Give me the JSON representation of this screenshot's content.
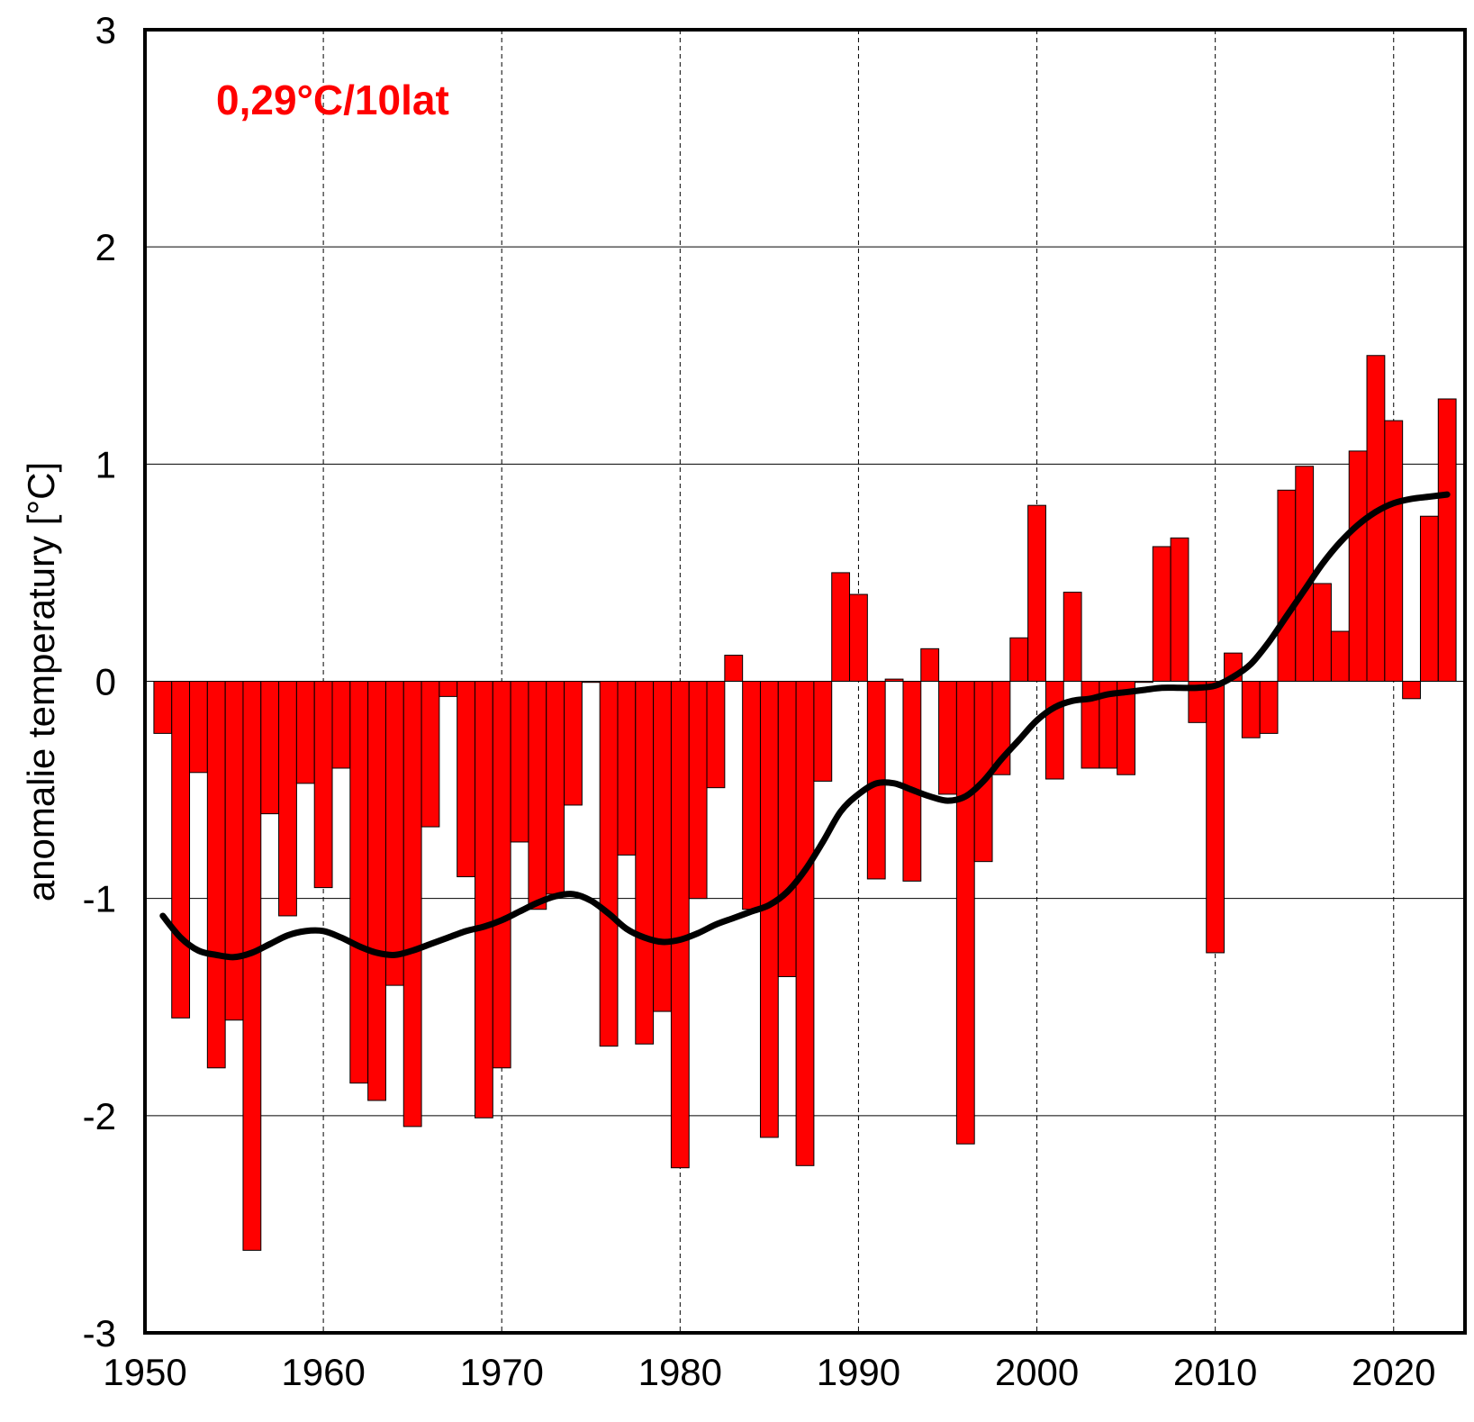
{
  "chart_data": {
    "type": "bar",
    "title": "",
    "xlabel": "",
    "ylabel": "anomalie temperatury [°C]",
    "annotation": "0,29°C/10lat",
    "xlim": [
      1950,
      2024
    ],
    "ylim": [
      -3,
      3
    ],
    "x_ticks": [
      1950,
      1960,
      1970,
      1980,
      1990,
      2000,
      2010,
      2020
    ],
    "y_ticks": [
      -3,
      -2,
      -1,
      0,
      1,
      2,
      3
    ],
    "grid": {
      "x": "dashed",
      "y": "solid"
    },
    "colors": {
      "bars": "#ff0000",
      "bar_edge": "#000000",
      "smooth_line": "#000000",
      "annotation": "#ff0000"
    },
    "series": [
      {
        "type": "bar",
        "x": [
          1951,
          1952,
          1953,
          1954,
          1955,
          1956,
          1957,
          1958,
          1959,
          1960,
          1961,
          1962,
          1963,
          1964,
          1965,
          1966,
          1967,
          1968,
          1969,
          1970,
          1971,
          1972,
          1973,
          1974,
          1975,
          1976,
          1977,
          1978,
          1979,
          1980,
          1981,
          1982,
          1983,
          1984,
          1985,
          1986,
          1987,
          1988,
          1989,
          1990,
          1991,
          1992,
          1993,
          1994,
          1995,
          1996,
          1997,
          1998,
          1999,
          2000,
          2001,
          2002,
          2003,
          2004,
          2005,
          2006,
          2007,
          2008,
          2009,
          2010,
          2011,
          2012,
          2013,
          2014,
          2015,
          2016,
          2017,
          2018,
          2019,
          2020,
          2021,
          2022,
          2023
        ],
        "values": [
          -0.24,
          -1.55,
          -0.42,
          -1.78,
          -1.56,
          -2.62,
          -0.61,
          -1.08,
          -0.47,
          -0.95,
          -0.4,
          -1.85,
          -1.93,
          -1.4,
          -2.05,
          -0.67,
          -0.07,
          -0.9,
          -2.01,
          -1.78,
          -0.74,
          -1.05,
          -0.98,
          -0.57,
          0.0,
          -1.68,
          -0.8,
          -1.67,
          -1.52,
          -2.24,
          -1.0,
          -0.49,
          0.12,
          -1.05,
          -2.1,
          -1.36,
          -2.23,
          -0.46,
          0.5,
          0.4,
          -0.91,
          0.01,
          -0.92,
          0.15,
          -0.52,
          -2.13,
          -0.83,
          -0.43,
          0.2,
          0.81,
          -0.45,
          0.41,
          -0.4,
          -0.4,
          -0.43,
          0.0,
          0.62,
          0.66,
          -0.19,
          -1.25,
          0.13,
          -0.26,
          -0.24,
          0.88,
          0.99,
          0.45,
          0.23,
          1.06,
          1.5,
          1.2,
          -0.08,
          0.76,
          1.3
        ]
      },
      {
        "type": "line",
        "x": [
          1951,
          1952,
          1953,
          1954,
          1955,
          1956,
          1957,
          1958,
          1959,
          1960,
          1961,
          1962,
          1963,
          1964,
          1965,
          1966,
          1967,
          1968,
          1969,
          1970,
          1971,
          1972,
          1973,
          1974,
          1975,
          1976,
          1977,
          1978,
          1979,
          1980,
          1981,
          1982,
          1983,
          1984,
          1985,
          1986,
          1987,
          1988,
          1989,
          1990,
          1991,
          1992,
          1993,
          1994,
          1995,
          1996,
          1997,
          1998,
          1999,
          2000,
          2001,
          2002,
          2003,
          2004,
          2005,
          2006,
          2007,
          2008,
          2009,
          2010,
          2011,
          2012,
          2013,
          2014,
          2015,
          2016,
          2017,
          2018,
          2019,
          2020,
          2021,
          2022,
          2023
        ],
        "values": [
          -1.08,
          -1.18,
          -1.24,
          -1.26,
          -1.27,
          -1.25,
          -1.21,
          -1.17,
          -1.15,
          -1.15,
          -1.18,
          -1.22,
          -1.25,
          -1.26,
          -1.24,
          -1.21,
          -1.18,
          -1.15,
          -1.13,
          -1.1,
          -1.06,
          -1.02,
          -0.99,
          -0.98,
          -1.01,
          -1.07,
          -1.14,
          -1.18,
          -1.2,
          -1.19,
          -1.16,
          -1.12,
          -1.09,
          -1.06,
          -1.03,
          -0.97,
          -0.87,
          -0.74,
          -0.6,
          -0.52,
          -0.47,
          -0.47,
          -0.5,
          -0.53,
          -0.55,
          -0.53,
          -0.46,
          -0.36,
          -0.27,
          -0.18,
          -0.12,
          -0.09,
          -0.08,
          -0.06,
          -0.05,
          -0.04,
          -0.03,
          -0.03,
          -0.03,
          -0.02,
          0.02,
          0.08,
          0.18,
          0.3,
          0.42,
          0.54,
          0.64,
          0.72,
          0.78,
          0.82,
          0.84,
          0.85,
          0.86
        ]
      }
    ]
  }
}
